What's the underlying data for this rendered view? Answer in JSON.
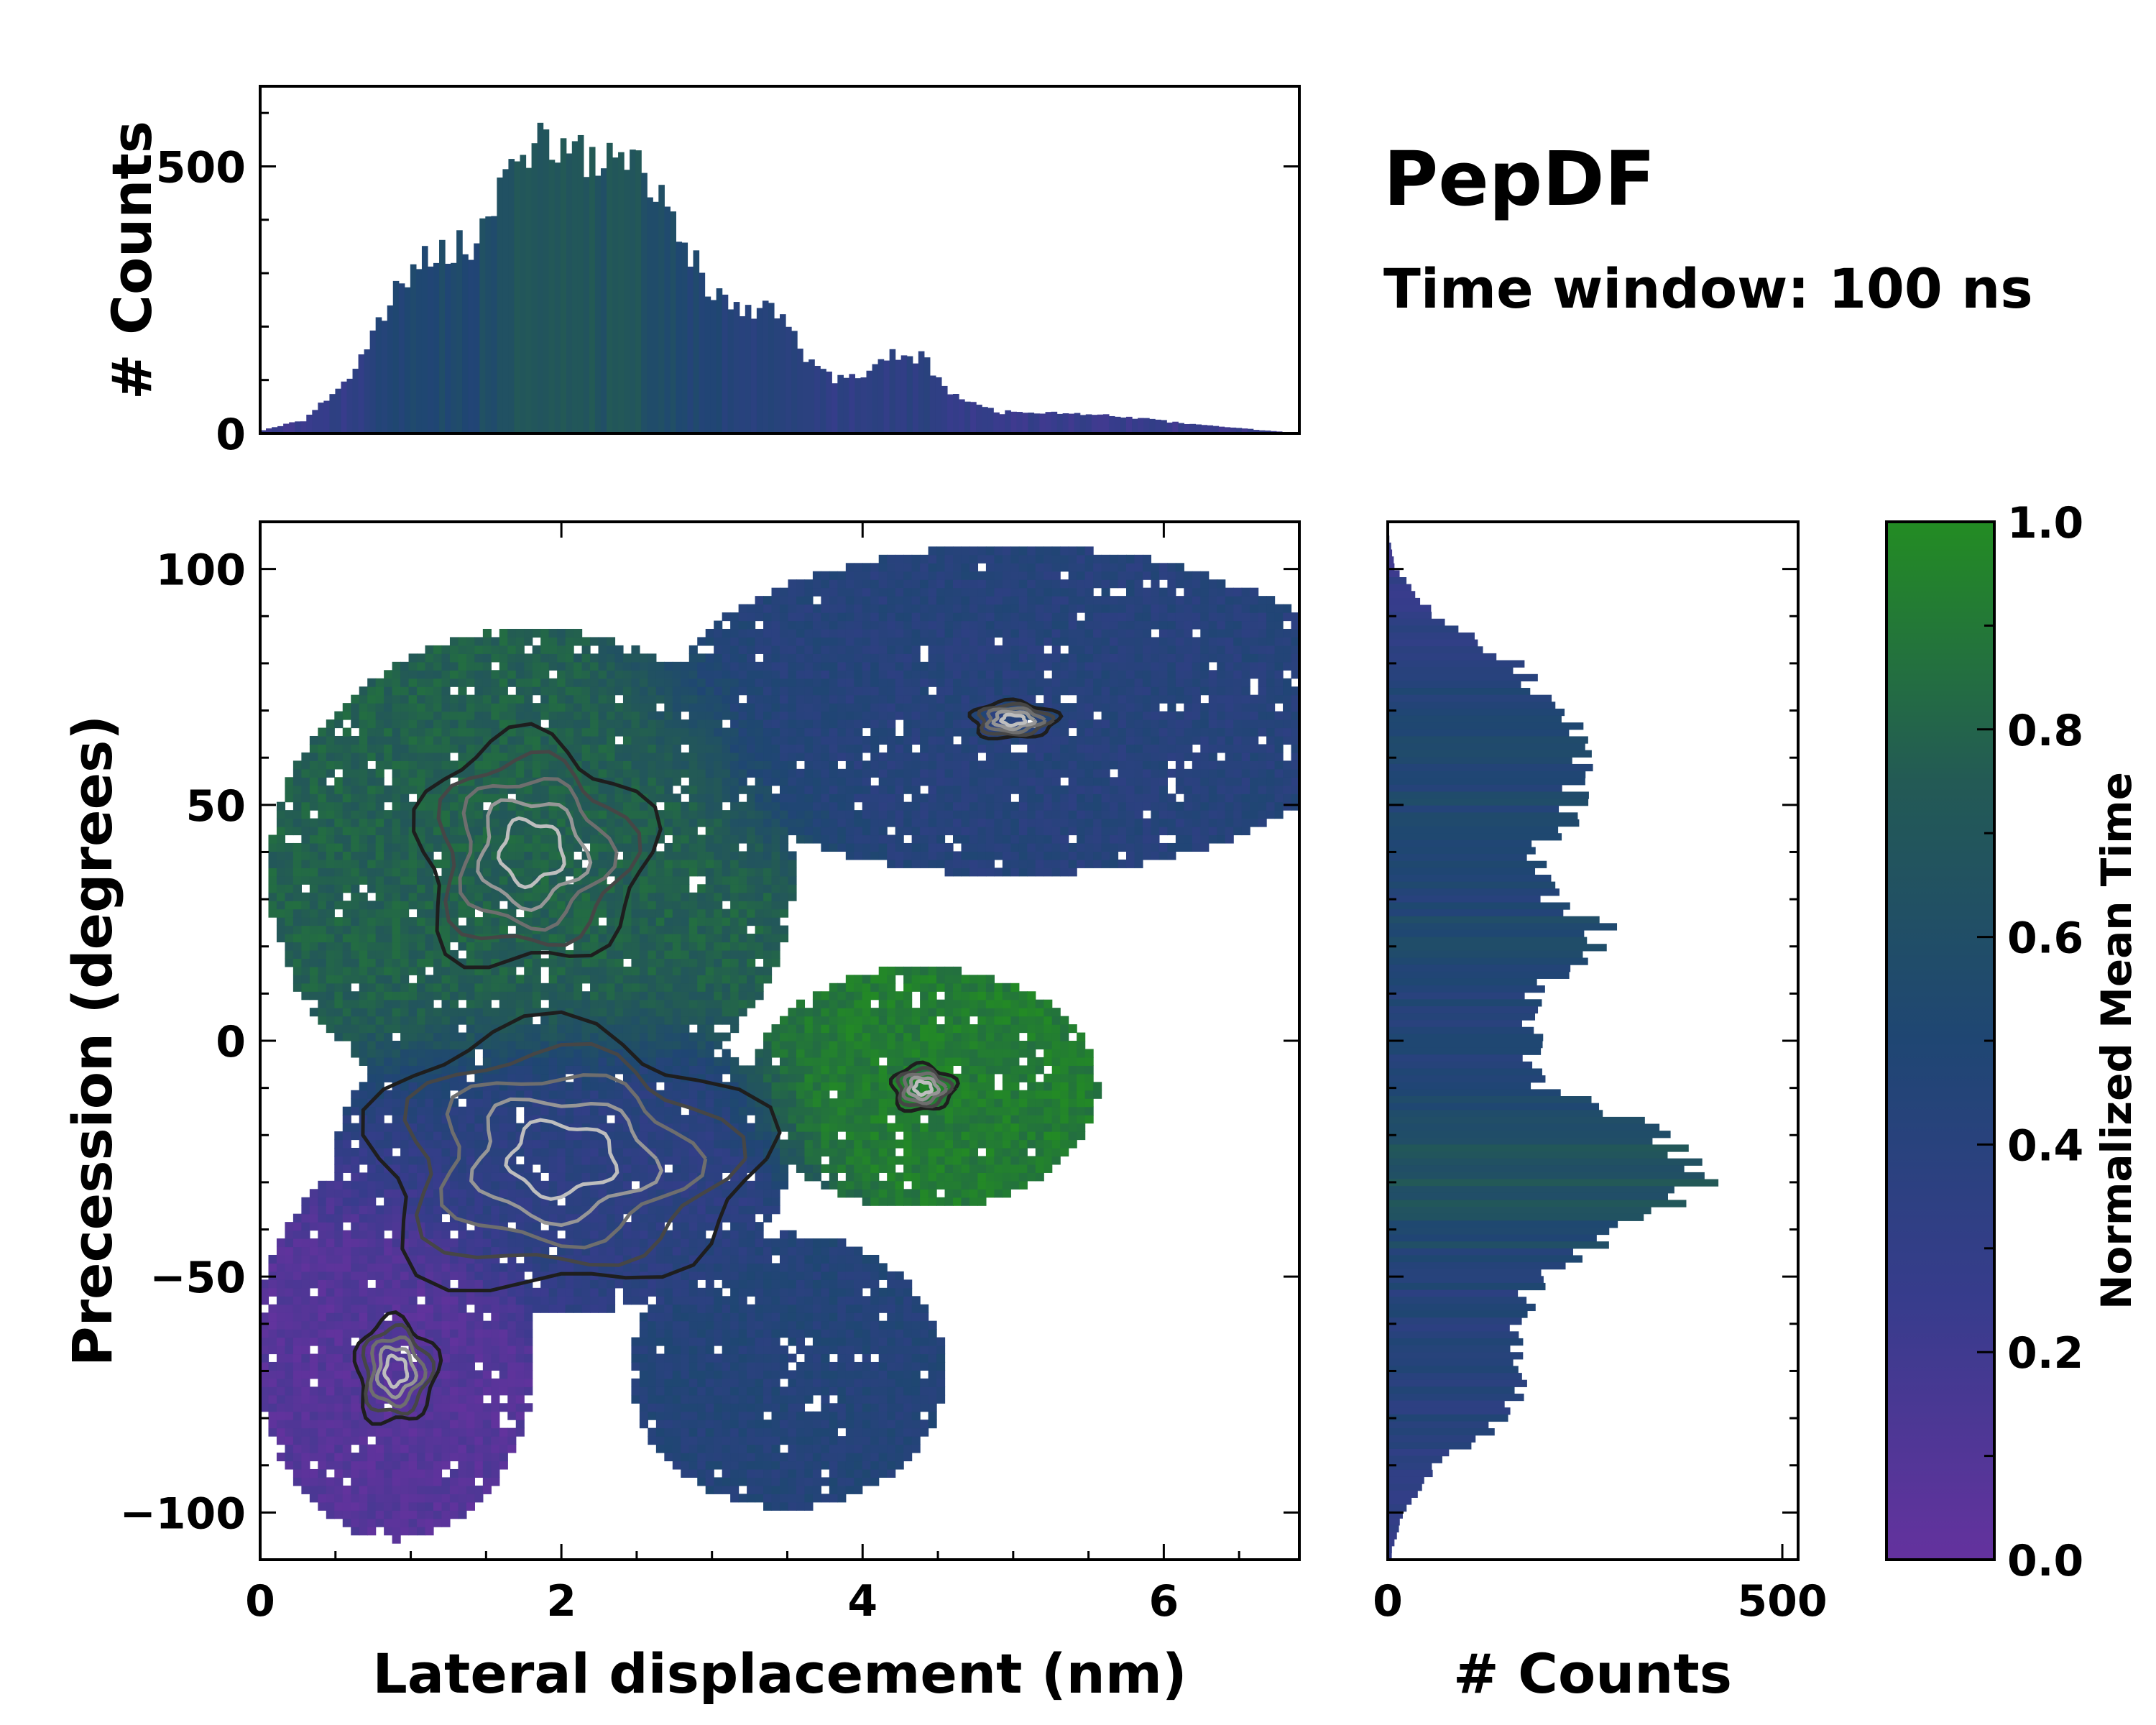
{
  "title": "PepDF",
  "subtitle": "Time window: 100 ns",
  "colors": {
    "purple": "#64329e",
    "indigo": "#373c8c",
    "navy": "#1f4673",
    "teal": "#235a55",
    "green": "#238c23",
    "contour": "#000000",
    "contour_light": "#c8c8c8"
  },
  "chart_data": [
    {
      "type": "heatmap",
      "name": "main-2d-histogram",
      "xlabel": "Lateral displacement (nm)",
      "ylabel": "Precession (degrees)",
      "xlim": [
        0,
        6.9
      ],
      "ylim": [
        -110,
        110
      ],
      "xticks": [
        0,
        2,
        4,
        6
      ],
      "yticks": [
        -100,
        -50,
        0,
        50,
        100
      ],
      "xtick_labels": [
        "0",
        "2",
        "4",
        "6"
      ],
      "ytick_labels": [
        "−100",
        "−50",
        "0",
        "50",
        "100"
      ],
      "colormap": "purple-blue-green",
      "value_name": "Normalized Mean Time",
      "regions": [
        {
          "label": "purple low-time lobe",
          "center": [
            0.9,
            -65
          ],
          "radius": [
            0.8,
            35
          ],
          "value": 0.08
        },
        {
          "label": "high-density lobe",
          "center": [
            2.0,
            -25
          ],
          "radius": [
            1.3,
            28
          ],
          "value": 0.35
        },
        {
          "label": "upper green band",
          "center": [
            1.8,
            35
          ],
          "radius": [
            1.5,
            45
          ],
          "value": 0.78
        },
        {
          "label": "green lobe right",
          "center": [
            4.4,
            -10
          ],
          "radius": [
            1.0,
            22
          ],
          "value": 0.92
        },
        {
          "label": "blue arm top-right",
          "center": [
            5.0,
            70
          ],
          "radius": [
            2.0,
            30
          ],
          "value": 0.42
        },
        {
          "label": "blue lower arm",
          "center": [
            3.5,
            -70
          ],
          "radius": [
            0.9,
            25
          ],
          "value": 0.45
        }
      ]
    },
    {
      "type": "bar",
      "name": "top-marginal-histogram",
      "ylabel": "# Counts",
      "xlim": [
        0,
        6.9
      ],
      "ylim": [
        0,
        650
      ],
      "yticks": [
        0,
        500
      ],
      "ytick_labels": [
        "0",
        "500"
      ],
      "profile_x": [
        0,
        0.3,
        0.6,
        0.9,
        1.1,
        1.4,
        1.6,
        1.85,
        2.1,
        2.5,
        2.75,
        2.95,
        3.2,
        3.45,
        3.6,
        3.8,
        4.0,
        4.2,
        4.4,
        4.6,
        4.9,
        5.2,
        5.5,
        5.8,
        6.1,
        6.4,
        6.7,
        6.9
      ],
      "profile_y": [
        5,
        25,
        110,
        260,
        340,
        350,
        450,
        560,
        520,
        500,
        420,
        270,
        240,
        220,
        150,
        100,
        110,
        150,
        140,
        70,
        40,
        40,
        35,
        30,
        20,
        12,
        5,
        0
      ]
    },
    {
      "type": "bar",
      "name": "right-marginal-histogram",
      "orientation": "horizontal",
      "xlabel": "# Counts",
      "xlim": [
        0,
        520
      ],
      "xticks": [
        0,
        500
      ],
      "xtick_labels": [
        "0",
        "500"
      ],
      "ylim": [
        -110,
        110
      ],
      "profile_y": [
        -108,
        -100,
        -90,
        -80,
        -70,
        -60,
        -50,
        -40,
        -35,
        -30,
        -25,
        -20,
        -15,
        -10,
        0,
        10,
        20,
        25,
        30,
        40,
        50,
        60,
        70,
        80,
        90,
        100,
        108
      ],
      "profile_x": [
        5,
        20,
        60,
        150,
        170,
        170,
        190,
        300,
        360,
        420,
        400,
        340,
        280,
        200,
        180,
        190,
        260,
        270,
        200,
        190,
        240,
        240,
        220,
        160,
        60,
        10,
        0
      ]
    },
    {
      "type": "colorbar",
      "name": "colorbar",
      "label": "Normalized Mean Time",
      "ylim": [
        0,
        1
      ],
      "ticks": [
        0,
        0.2,
        0.4,
        0.6,
        0.8,
        1.0
      ],
      "tick_labels": [
        "0.0",
        "0.2",
        "0.4",
        "0.6",
        "0.8",
        "1.0"
      ]
    }
  ]
}
